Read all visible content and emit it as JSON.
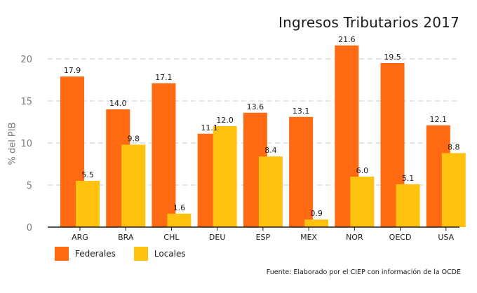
{
  "chart_data": {
    "type": "bar",
    "title": "Ingresos Tributarios 2017",
    "ylabel": "% del PIB",
    "xlabel": "",
    "categories": [
      "ARG",
      "BRA",
      "CHL",
      "DEU",
      "ESP",
      "MEX",
      "NOR",
      "OECD",
      "USA"
    ],
    "series": [
      {
        "name": "Federales",
        "color": "#FF6A13",
        "values": [
          17.9,
          14.0,
          17.1,
          11.1,
          13.6,
          13.1,
          21.6,
          19.5,
          12.1
        ],
        "labels": [
          "17.9",
          "14.0",
          "17.1",
          "11.1",
          "13.6",
          "13.1",
          "21.6",
          "19.5",
          "12.1"
        ]
      },
      {
        "name": "Locales",
        "color": "#FFC20E",
        "values": [
          5.5,
          9.8,
          1.6,
          12.0,
          8.4,
          0.9,
          6.0,
          5.1,
          8.8
        ],
        "labels": [
          "5.5",
          "9.8",
          "1.6",
          "12.0",
          "8.4",
          "0.9",
          "6.0",
          "5.1",
          "8.8"
        ]
      }
    ],
    "ylim": [
      0,
      22
    ],
    "yticks": [
      0,
      5,
      10,
      15,
      20
    ],
    "grid": true,
    "legend_position": "bottom-left",
    "source": "Fuente: Elaborado por el CIEP con información de la OCDE"
  }
}
